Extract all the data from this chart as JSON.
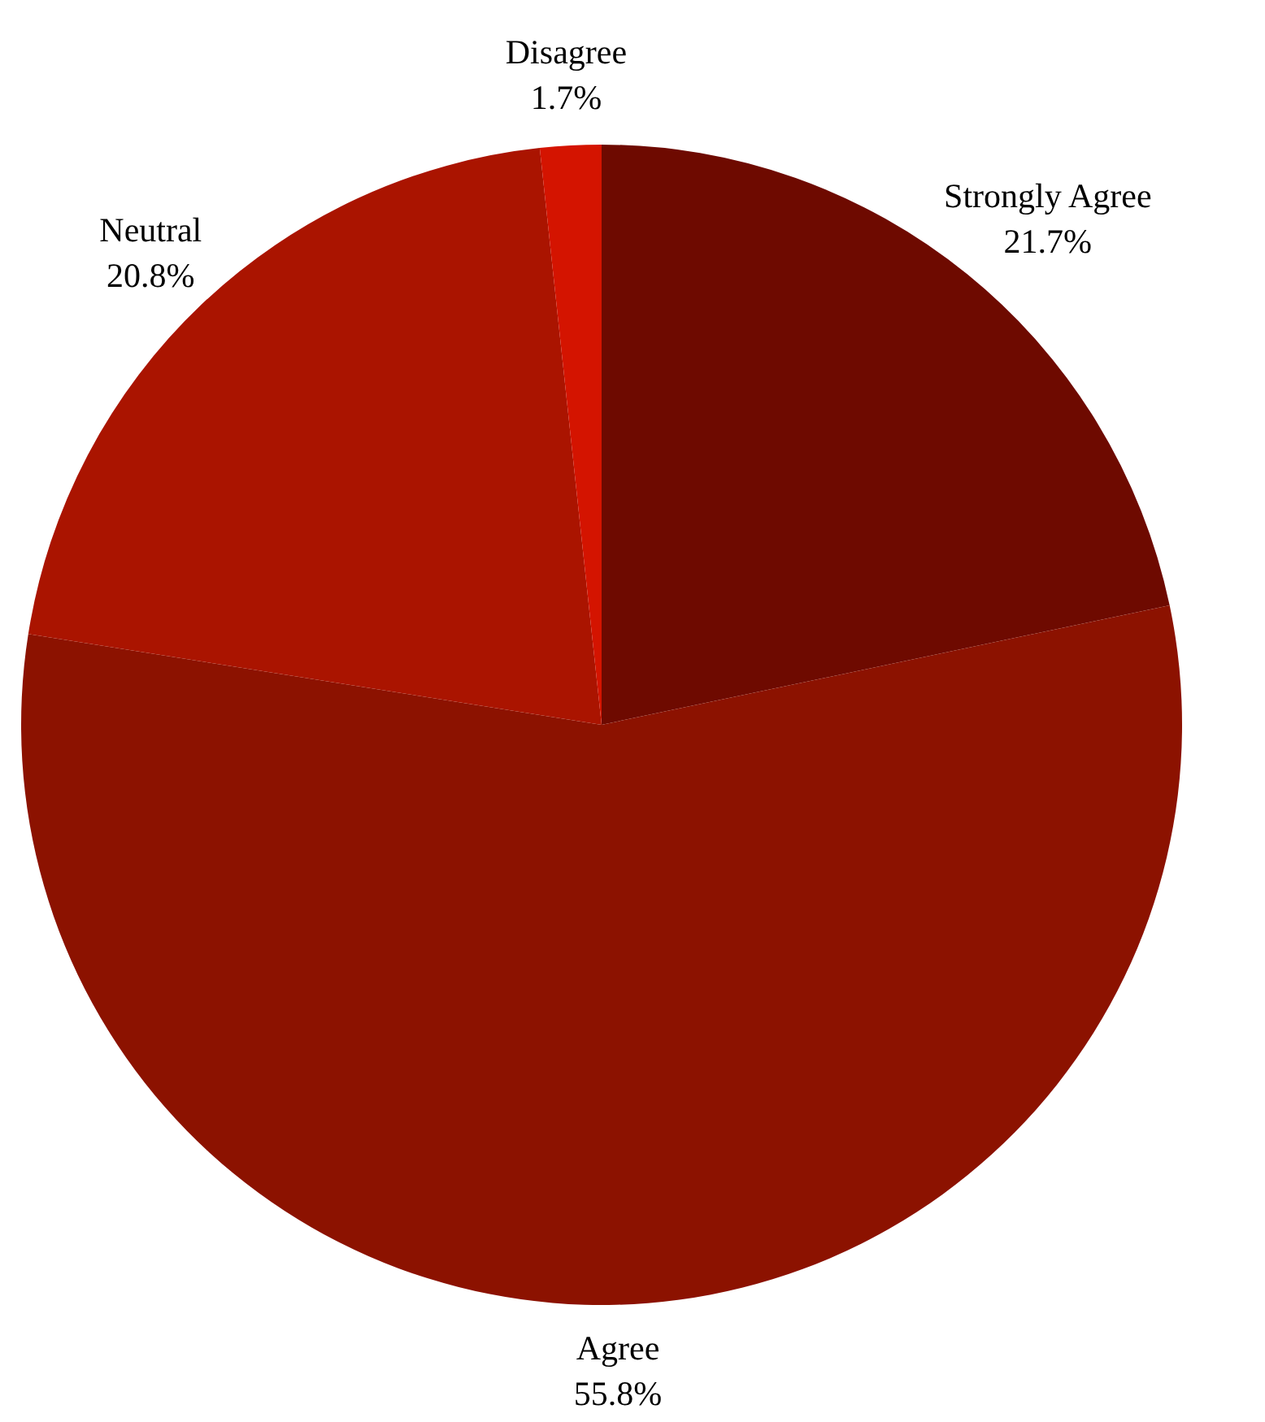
{
  "chart_data": {
    "type": "pie",
    "categories": [
      "Strongly Agree",
      "Agree",
      "Neutral",
      "Disagree"
    ],
    "values": [
      21.7,
      55.8,
      20.8,
      1.7
    ],
    "colors": [
      "#6e0a00",
      "#8c1200",
      "#aa1400",
      "#d41400"
    ],
    "value_labels": [
      "21.7%",
      "55.8%",
      "20.8%",
      "1.7%"
    ],
    "legend": false
  }
}
